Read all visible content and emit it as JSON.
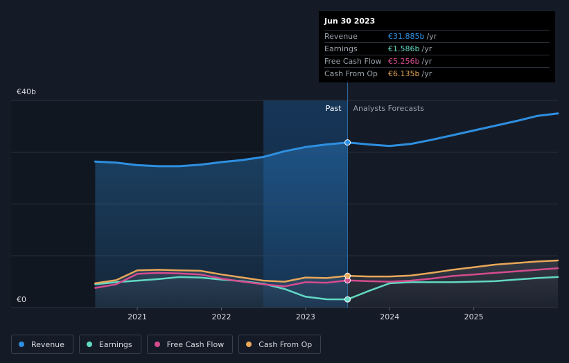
{
  "tooltip": {
    "date": "Jun 30 2023",
    "rows": [
      {
        "label": "Revenue",
        "value": "€31.885b",
        "unit": "/yr",
        "color": "#2e8fe0"
      },
      {
        "label": "Earnings",
        "value": "€1.586b",
        "unit": "/yr",
        "color": "#62d9c4"
      },
      {
        "label": "Free Cash Flow",
        "value": "€5.256b",
        "unit": "/yr",
        "color": "#d44c8e"
      },
      {
        "label": "Cash From Op",
        "value": "€6.135b",
        "unit": "/yr",
        "color": "#e9a85a"
      }
    ]
  },
  "legend": [
    {
      "label": "Revenue",
      "color": "#2e8fe0"
    },
    {
      "label": "Earnings",
      "color": "#62d9c4"
    },
    {
      "label": "Free Cash Flow",
      "color": "#d44c8e"
    },
    {
      "label": "Cash From Op",
      "color": "#e9a85a"
    }
  ],
  "chart_data": {
    "type": "line",
    "title": "",
    "xlabel": "",
    "ylabel": "",
    "ylim": [
      0,
      40
    ],
    "y_ticks": [
      {
        "value": 40,
        "label": "€40b"
      },
      {
        "value": 0,
        "label": "€0"
      }
    ],
    "x_ticks": [
      {
        "value": 2021,
        "label": "2021"
      },
      {
        "value": 2022,
        "label": "2022"
      },
      {
        "value": 2023,
        "label": "2023"
      },
      {
        "value": 2024,
        "label": "2024"
      },
      {
        "value": 2025,
        "label": "2025"
      }
    ],
    "xlim": [
      2019.5,
      2026.0
    ],
    "past_label": "Past",
    "forecast_label": "Analysts Forecasts",
    "past_end": 2023.5,
    "highlight_start": 2022.5,
    "grid": true,
    "legend_position": "bottom-left",
    "series": [
      {
        "name": "Revenue",
        "color": "#2e8fe0",
        "fill": true,
        "points": [
          [
            2020.5,
            28.2
          ],
          [
            2020.75,
            28.0
          ],
          [
            2021.0,
            27.5
          ],
          [
            2021.25,
            27.3
          ],
          [
            2021.5,
            27.3
          ],
          [
            2021.75,
            27.6
          ],
          [
            2022.0,
            28.1
          ],
          [
            2022.25,
            28.5
          ],
          [
            2022.5,
            29.1
          ],
          [
            2022.75,
            30.2
          ],
          [
            2023.0,
            31.0
          ],
          [
            2023.25,
            31.5
          ],
          [
            2023.5,
            31.885
          ],
          [
            2023.75,
            31.5
          ],
          [
            2024.0,
            31.2
          ],
          [
            2024.25,
            31.6
          ],
          [
            2024.5,
            32.4
          ],
          [
            2024.75,
            33.3
          ],
          [
            2025.0,
            34.2
          ],
          [
            2025.25,
            35.1
          ],
          [
            2025.5,
            36.0
          ],
          [
            2025.75,
            37.0
          ],
          [
            2026.0,
            37.5
          ]
        ]
      },
      {
        "name": "Earnings",
        "color": "#62d9c4",
        "fill": false,
        "points": [
          [
            2020.5,
            4.5
          ],
          [
            2020.75,
            4.9
          ],
          [
            2021.0,
            5.2
          ],
          [
            2021.25,
            5.5
          ],
          [
            2021.5,
            5.9
          ],
          [
            2021.75,
            5.8
          ],
          [
            2022.0,
            5.4
          ],
          [
            2022.25,
            5.1
          ],
          [
            2022.5,
            4.6
          ],
          [
            2022.75,
            3.6
          ],
          [
            2023.0,
            2.1
          ],
          [
            2023.25,
            1.6
          ],
          [
            2023.5,
            1.586
          ],
          [
            2023.75,
            3.2
          ],
          [
            2024.0,
            4.7
          ],
          [
            2024.25,
            4.9
          ],
          [
            2024.5,
            4.9
          ],
          [
            2024.75,
            4.9
          ],
          [
            2025.0,
            5.0
          ],
          [
            2025.25,
            5.1
          ],
          [
            2025.5,
            5.4
          ],
          [
            2025.75,
            5.7
          ],
          [
            2026.0,
            5.9
          ]
        ]
      },
      {
        "name": "Free Cash Flow",
        "color": "#d44c8e",
        "fill": false,
        "points": [
          [
            2020.5,
            3.8
          ],
          [
            2020.75,
            4.5
          ],
          [
            2021.0,
            6.5
          ],
          [
            2021.25,
            6.7
          ],
          [
            2021.5,
            6.6
          ],
          [
            2021.75,
            6.4
          ],
          [
            2022.0,
            5.6
          ],
          [
            2022.25,
            5.0
          ],
          [
            2022.5,
            4.5
          ],
          [
            2022.75,
            4.1
          ],
          [
            2023.0,
            4.9
          ],
          [
            2023.25,
            4.8
          ],
          [
            2023.5,
            5.256
          ],
          [
            2023.75,
            5.1
          ],
          [
            2024.0,
            5.0
          ],
          [
            2024.25,
            5.2
          ],
          [
            2024.5,
            5.6
          ],
          [
            2024.75,
            6.1
          ],
          [
            2025.0,
            6.4
          ],
          [
            2025.25,
            6.7
          ],
          [
            2025.5,
            7.0
          ],
          [
            2025.75,
            7.3
          ],
          [
            2026.0,
            7.6
          ]
        ]
      },
      {
        "name": "Cash From Op",
        "color": "#e9a85a",
        "fill": false,
        "points": [
          [
            2020.5,
            4.7
          ],
          [
            2020.75,
            5.3
          ],
          [
            2021.0,
            7.2
          ],
          [
            2021.25,
            7.3
          ],
          [
            2021.5,
            7.2
          ],
          [
            2021.75,
            7.1
          ],
          [
            2022.0,
            6.4
          ],
          [
            2022.25,
            5.8
          ],
          [
            2022.5,
            5.2
          ],
          [
            2022.75,
            5.0
          ],
          [
            2023.0,
            5.8
          ],
          [
            2023.25,
            5.7
          ],
          [
            2023.5,
            6.135
          ],
          [
            2023.75,
            6.0
          ],
          [
            2024.0,
            6.0
          ],
          [
            2024.25,
            6.2
          ],
          [
            2024.5,
            6.7
          ],
          [
            2024.75,
            7.3
          ],
          [
            2025.0,
            7.8
          ],
          [
            2025.25,
            8.3
          ],
          [
            2025.5,
            8.6
          ],
          [
            2025.75,
            8.9
          ],
          [
            2026.0,
            9.1
          ]
        ]
      }
    ]
  }
}
